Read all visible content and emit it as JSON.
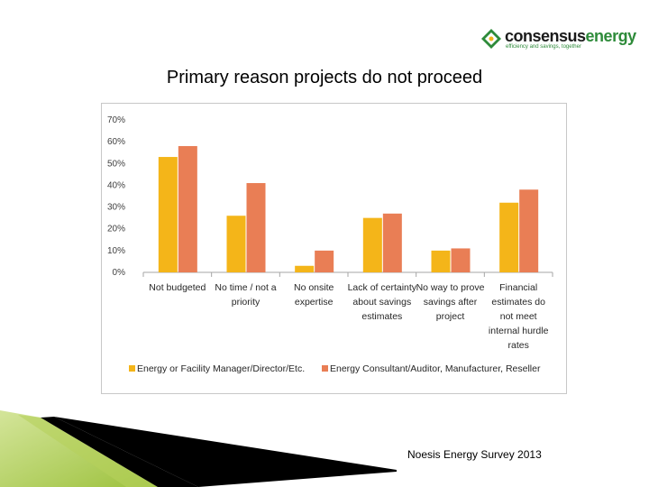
{
  "logo": {
    "word1": "consensus",
    "word2": "energy",
    "tagline": "efficiency and savings, together"
  },
  "slide": {
    "title": "Primary reason projects do not proceed",
    "source": "Noesis Energy Survey 2013"
  },
  "colors": {
    "series1": "#F4B519",
    "series2": "#E97E55",
    "grid": "#d9d9d9",
    "axis": "#a6a6a6",
    "logo_green": "#2e8b3a"
  },
  "chart_data": {
    "type": "bar",
    "title": "",
    "xlabel": "",
    "ylabel": "",
    "ylim": [
      0,
      70
    ],
    "ytick_labels": [
      "0%",
      "10%",
      "20%",
      "30%",
      "40%",
      "50%",
      "60%",
      "70%"
    ],
    "categories": [
      [
        "Not budgeted"
      ],
      [
        "No time / not a",
        "priority"
      ],
      [
        "No onsite",
        "expertise"
      ],
      [
        "Lack of certainty",
        "about savings",
        "estimates"
      ],
      [
        "No way to prove",
        "savings after",
        "project"
      ],
      [
        "Financial",
        "estimates do",
        "not meet",
        "internal hurdle",
        "rates"
      ]
    ],
    "series": [
      {
        "name": "Energy or Facility Manager/Director/Etc.",
        "values": [
          53,
          26,
          3,
          25,
          10,
          32
        ]
      },
      {
        "name": "Energy Consultant/Auditor, Manufacturer, Reseller",
        "values": [
          58,
          41,
          10,
          27,
          11,
          38
        ]
      }
    ],
    "legend": "bottom",
    "grid": false
  }
}
